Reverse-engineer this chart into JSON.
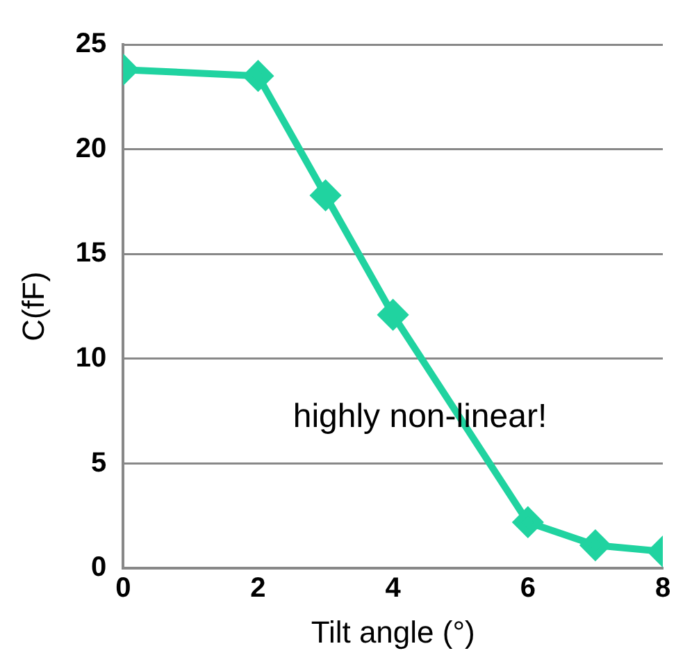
{
  "chart_data": {
    "type": "line",
    "xlabel": "Tilt angle (°)",
    "ylabel": "C(fF)",
    "x": [
      0,
      2,
      3,
      4,
      6,
      7,
      8
    ],
    "series": [
      {
        "color": "#20d3a0",
        "values": [
          23.8,
          23.5,
          17.8,
          12.1,
          2.2,
          1.1,
          0.8
        ]
      }
    ],
    "xlim": [
      0,
      8
    ],
    "xticks": [
      0,
      2,
      4,
      6,
      8
    ],
    "ylim": [
      0,
      25
    ],
    "yticks": [
      0,
      5,
      10,
      15,
      20,
      25
    ],
    "grid": "y",
    "legend": false,
    "marker": "diamond",
    "line_style": "solid",
    "annotations": [
      "highly non-linear!"
    ]
  }
}
